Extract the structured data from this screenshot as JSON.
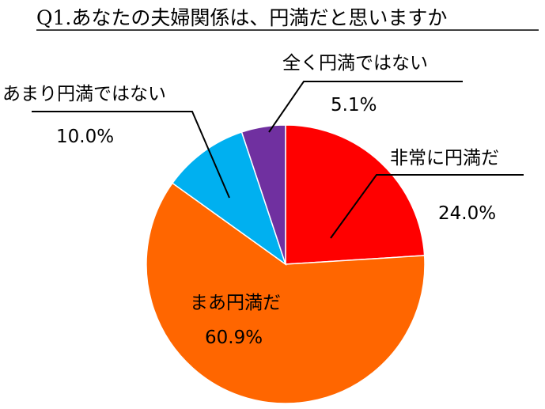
{
  "chart_data": {
    "type": "pie",
    "title": "Q1.あなたの夫婦関係は、円満だと思いますか",
    "categories": [
      "非常に円満だ",
      "まあ円満だ",
      "あまり円満ではない",
      "全く円満ではない"
    ],
    "values": [
      24.0,
      60.9,
      10.0,
      5.1
    ],
    "value_labels": [
      "24.0%",
      "60.9%",
      "10.0%",
      "5.1%"
    ],
    "colors": [
      "#ff0000",
      "#ff6600",
      "#00b0f0",
      "#7030a0"
    ],
    "start_angle": "12 o'clock",
    "direction": "clockwise",
    "legend": "none"
  }
}
